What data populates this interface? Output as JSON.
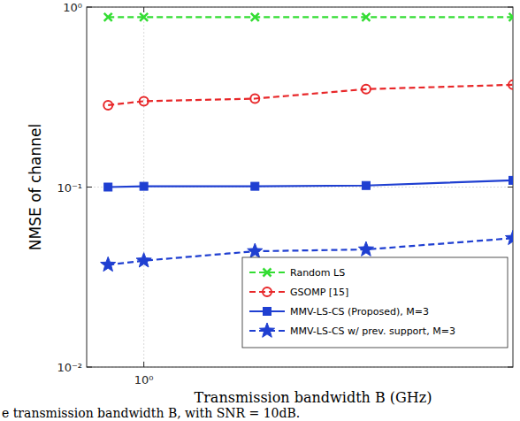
{
  "chart_data": {
    "type": "line",
    "x_label": "Transmission bandwidth B (GHz)",
    "y_label": "NMSE of channel",
    "caption": "e transmission bandwidth B, with SNR = 10dB.",
    "log": true,
    "grid": true,
    "legend": "lower right",
    "x": [
      0.8,
      1,
      2,
      4,
      10
    ],
    "xlim": [
      0.7,
      10
    ],
    "xticks": [
      {
        "value": 1,
        "label": "10⁰"
      }
    ],
    "ylim": [
      0.01,
      1
    ],
    "yticks": [
      {
        "value": 0.01,
        "label": "10⁻²"
      },
      {
        "value": 0.1,
        "label": "10⁻¹"
      },
      {
        "value": 1,
        "label": "10⁰"
      }
    ],
    "series": [
      {
        "name": "Random LS",
        "color": "#33dd33",
        "marker": "x",
        "line_style": "dashed",
        "values": [
          0.88,
          0.88,
          0.88,
          0.88,
          0.88
        ]
      },
      {
        "name": "GSOMP [15]",
        "color": "#e8282a",
        "marker": "circle",
        "line_style": "dashed",
        "values": [
          0.285,
          0.3,
          0.31,
          0.35,
          0.37
        ]
      },
      {
        "name": "MMV-LS-CS (Proposed), M=3",
        "color": "#1f3fd1",
        "marker": "square",
        "line_style": "solid",
        "values": [
          0.1,
          0.101,
          0.101,
          0.102,
          0.109
        ]
      },
      {
        "name": "MMV-LS-CS w/ prev. support, M=3",
        "color": "#1f3fd1",
        "marker": "star",
        "line_style": "dashed",
        "values": [
          0.037,
          0.039,
          0.044,
          0.045,
          0.052
        ]
      }
    ]
  }
}
